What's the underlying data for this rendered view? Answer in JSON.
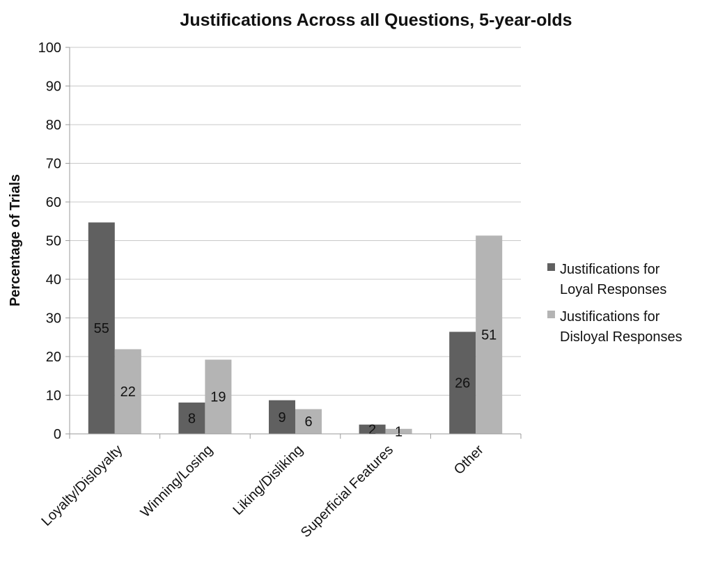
{
  "chart_data": {
    "type": "bar",
    "title": "Justifications Across all Questions, 5-year-olds",
    "ylabel": "Percentage of Trials",
    "xlabel": "",
    "ylim": [
      0,
      100
    ],
    "yticks": [
      0,
      10,
      20,
      30,
      40,
      50,
      60,
      70,
      80,
      90,
      100
    ],
    "grid": true,
    "legend_position": "right",
    "categories": [
      "Loyalty/Disloyalty",
      "Winning/Losing",
      "Liking/Disliking",
      "Superficial Features",
      "Other"
    ],
    "series": [
      {
        "name": "Justifications for Loyal Responses",
        "name_lines": [
          "Justifications for",
          "Loyal Responses"
        ],
        "color": "#606060",
        "values": [
          54.7,
          8.1,
          8.7,
          2.4,
          26.4
        ],
        "labels": [
          "55",
          "8",
          "9",
          "2",
          "26"
        ]
      },
      {
        "name": "Justifications for Disloyal Responses",
        "name_lines": [
          "Justifications for",
          "Disloyal Responses"
        ],
        "color": "#b4b4b4",
        "values": [
          21.9,
          19.2,
          6.4,
          1.3,
          51.3
        ],
        "labels": [
          "22",
          "19",
          "6",
          "1",
          "51"
        ]
      }
    ]
  }
}
